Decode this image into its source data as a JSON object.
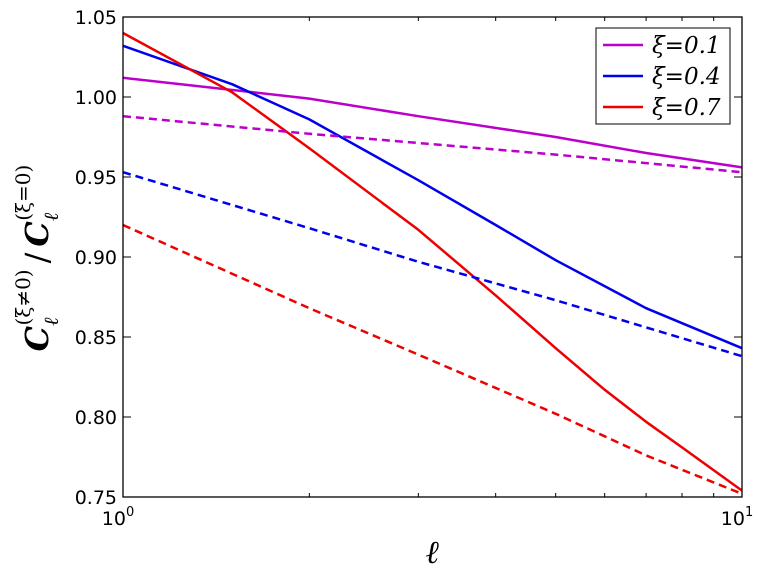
{
  "chart_data": {
    "type": "line",
    "xscale": "log",
    "xlim": [
      1,
      10
    ],
    "ylim": [
      0.75,
      1.05
    ],
    "x_ticks": [
      {
        "value": 1,
        "base": "10",
        "exp": "0"
      },
      {
        "value": 10,
        "base": "10",
        "exp": "1"
      }
    ],
    "y_ticks": [
      {
        "value": 0.75,
        "label": "0.75"
      },
      {
        "value": 0.8,
        "label": "0.80"
      },
      {
        "value": 0.85,
        "label": "0.85"
      },
      {
        "value": 0.9,
        "label": "0.90"
      },
      {
        "value": 0.95,
        "label": "0.95"
      },
      {
        "value": 1.0,
        "label": "1.00"
      },
      {
        "value": 1.05,
        "label": "1.05"
      }
    ],
    "xlabel": "ℓ",
    "ylabel": {
      "num_base": "C",
      "num_sub": "ℓ",
      "num_sup": "(ξ≠0)",
      "slash": "/",
      "den_base": "C",
      "den_sub": "ℓ",
      "den_sup": "(ξ=0)"
    },
    "grid": false,
    "legend_position": "top-right",
    "series": [
      {
        "name": "ξ=0.1",
        "color": "#bb00cc",
        "dash": false,
        "points": [
          [
            1,
            1.012
          ],
          [
            2,
            0.999
          ],
          [
            3,
            0.988
          ],
          [
            5,
            0.975
          ],
          [
            7,
            0.965
          ],
          [
            10,
            0.956
          ]
        ]
      },
      {
        "name": "ξ=0.4",
        "color": "#0000ee",
        "dash": false,
        "points": [
          [
            1,
            1.032
          ],
          [
            1.5,
            1.008
          ],
          [
            2,
            0.986
          ],
          [
            3,
            0.948
          ],
          [
            4,
            0.92
          ],
          [
            5,
            0.898
          ],
          [
            7,
            0.868
          ],
          [
            10,
            0.843
          ]
        ]
      },
      {
        "name": "ξ=0.7",
        "color": "#ee0000",
        "dash": false,
        "points": [
          [
            1,
            1.04
          ],
          [
            1.5,
            1.003
          ],
          [
            2,
            0.968
          ],
          [
            3,
            0.917
          ],
          [
            4,
            0.876
          ],
          [
            5,
            0.843
          ],
          [
            6,
            0.817
          ],
          [
            7,
            0.797
          ],
          [
            8,
            0.781
          ],
          [
            10,
            0.754
          ]
        ]
      },
      {
        "color": "#bb00cc",
        "dash": true,
        "points": [
          [
            1,
            0.988
          ],
          [
            2,
            0.977
          ],
          [
            5,
            0.964
          ],
          [
            10,
            0.953
          ]
        ]
      },
      {
        "color": "#0000ee",
        "dash": true,
        "points": [
          [
            1,
            0.953
          ],
          [
            2,
            0.918
          ],
          [
            3,
            0.897
          ],
          [
            5,
            0.873
          ],
          [
            7,
            0.856
          ],
          [
            10,
            0.838
          ]
        ]
      },
      {
        "color": "#ee0000",
        "dash": true,
        "points": [
          [
            1,
            0.92
          ],
          [
            2,
            0.868
          ],
          [
            3,
            0.839
          ],
          [
            5,
            0.802
          ],
          [
            7,
            0.776
          ],
          [
            10,
            0.752
          ]
        ]
      }
    ]
  }
}
